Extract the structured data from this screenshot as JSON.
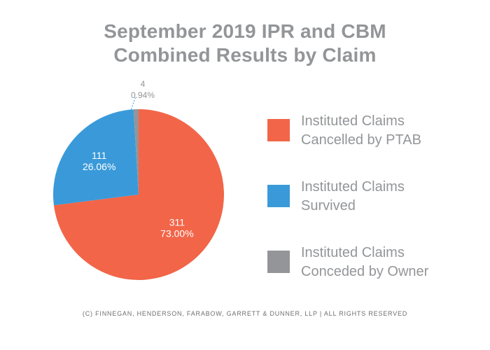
{
  "title": {
    "line1": "September 2019 IPR and CBM",
    "line2": "Combined Results by Claim"
  },
  "chart_data": {
    "type": "pie",
    "title": "September 2019 IPR and CBM Combined Results by Claim",
    "slices": [
      {
        "name": "Instituted Claims Cancelled by PTAB",
        "value": 311,
        "percent": "73.00%",
        "color": "#f26548"
      },
      {
        "name": "Instituted Claims Survived",
        "value": 111,
        "percent": "26.06%",
        "color": "#3a9ad9"
      },
      {
        "name": "Instituted Claims Conceded by Owner",
        "value": 4,
        "percent": "0.94%",
        "color": "#939598"
      }
    ],
    "legend_placement": "right"
  },
  "legend": [
    {
      "line1": "Instituted Claims",
      "line2": "Cancelled by PTAB",
      "color": "#f26548"
    },
    {
      "line1": "Instituted Claims",
      "line2": "Survived",
      "color": "#3a9ad9"
    },
    {
      "line1": "Instituted Claims",
      "line2": "Conceded by Owner",
      "color": "#939598"
    }
  ],
  "footer": "(c) Finnegan, Henderson, Farabow, Garrett & Dunner, LLP | All Rights Reserved"
}
